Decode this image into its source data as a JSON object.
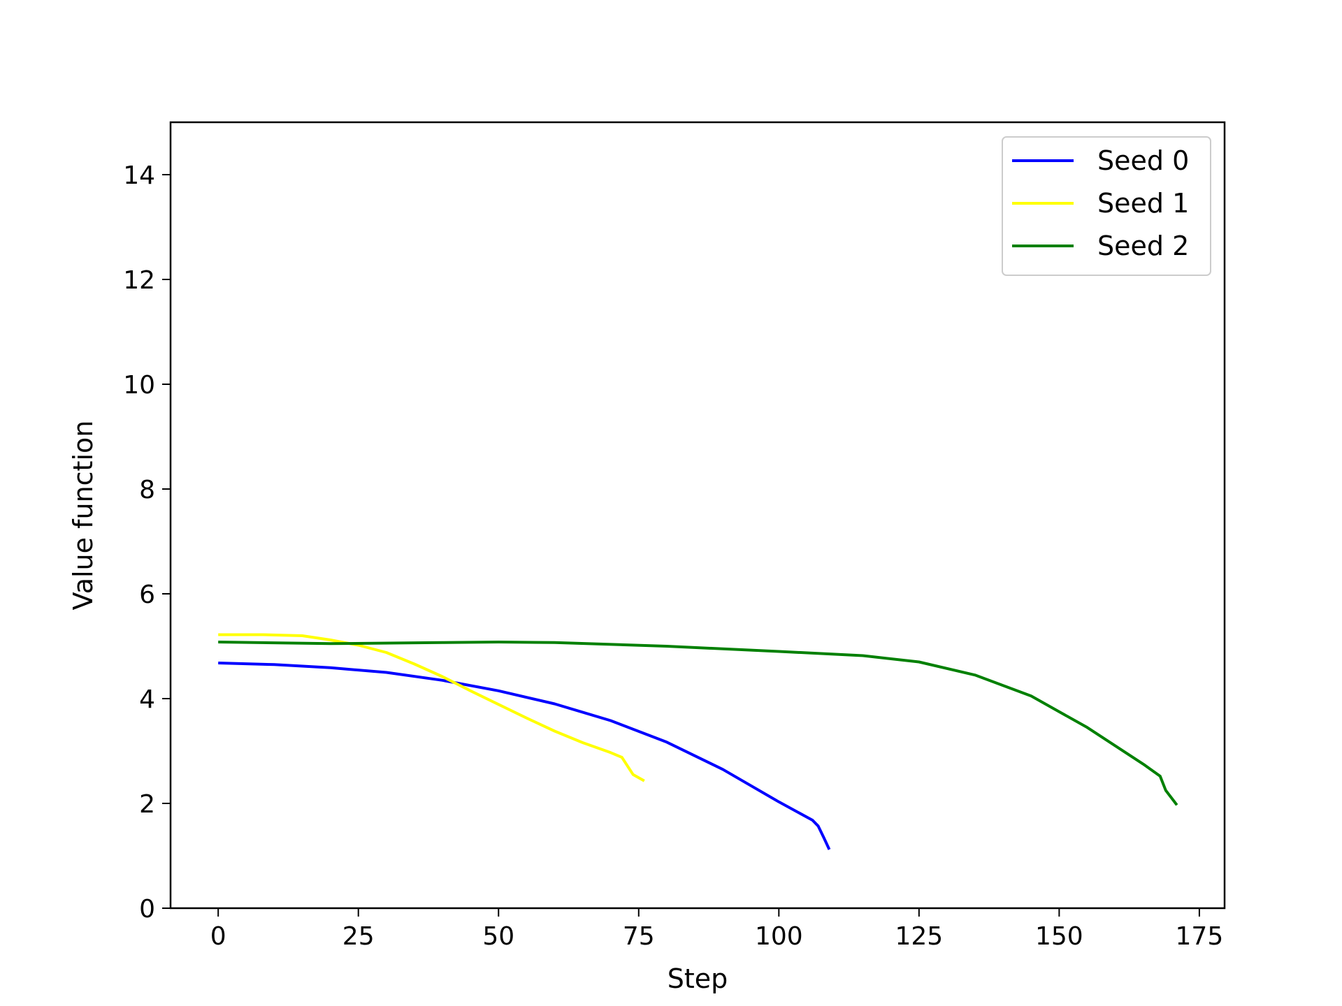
{
  "chart_data": {
    "type": "line",
    "title": "",
    "xlabel": "Step",
    "ylabel": "Value function",
    "xlim": [
      -8.5,
      179.5
    ],
    "ylim": [
      0,
      15
    ],
    "xticks": [
      0,
      25,
      50,
      75,
      100,
      125,
      150,
      175
    ],
    "yticks": [
      0,
      2,
      4,
      6,
      8,
      10,
      12,
      14
    ],
    "grid": false,
    "legend_position": "top-right",
    "series": [
      {
        "name": "Seed 0",
        "color": "#0000ff",
        "x": [
          0,
          10,
          20,
          30,
          40,
          50,
          60,
          70,
          80,
          90,
          100,
          106,
          107,
          108,
          109
        ],
        "y": [
          4.68,
          4.65,
          4.59,
          4.5,
          4.35,
          4.15,
          3.9,
          3.58,
          3.17,
          2.65,
          2.03,
          1.68,
          1.57,
          1.35,
          1.12
        ]
      },
      {
        "name": "Seed 1",
        "color": "#ffff00",
        "x": [
          0,
          8,
          15,
          20,
          25,
          30,
          35,
          40,
          45,
          50,
          55,
          60,
          65,
          70,
          72,
          74,
          76
        ],
        "y": [
          5.22,
          5.22,
          5.2,
          5.12,
          5.02,
          4.88,
          4.66,
          4.42,
          4.15,
          3.89,
          3.63,
          3.38,
          3.16,
          2.97,
          2.88,
          2.55,
          2.43
        ]
      },
      {
        "name": "Seed 2",
        "color": "#008000",
        "x": [
          0,
          20,
          40,
          50,
          60,
          80,
          100,
          115,
          125,
          135,
          145,
          155,
          165,
          168,
          169,
          171
        ],
        "y": [
          5.08,
          5.05,
          5.07,
          5.08,
          5.07,
          5.0,
          4.9,
          4.82,
          4.7,
          4.45,
          4.05,
          3.45,
          2.75,
          2.52,
          2.25,
          1.97
        ]
      }
    ]
  }
}
